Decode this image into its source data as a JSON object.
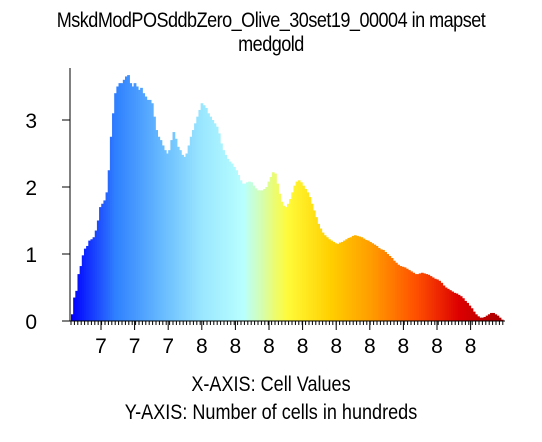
{
  "chart_data": {
    "type": "bar",
    "title": "MskdModPOSddbZero_Olive_30set19_00004 in mapset medgold",
    "xlabel": "X-AXIS: Cell Values",
    "ylabel": "Y-AXIS: Number of cells in hundreds",
    "ylim": [
      0,
      3.8
    ],
    "y_ticks": [
      0,
      1,
      2,
      3
    ],
    "x_tick_labels": [
      "7",
      "7",
      "7",
      "8",
      "8",
      "8",
      "8",
      "8",
      "8",
      "8",
      "8",
      "8"
    ],
    "grid": false,
    "legend": "none",
    "colormap": [
      "#0000ff",
      "#2f7fff",
      "#62b6ff",
      "#9ae6ff",
      "#b8ffff",
      "#fffb3a",
      "#ffd000",
      "#ff9a00",
      "#ff5000",
      "#dd0000",
      "#a80000"
    ],
    "values": [
      0.1,
      0.35,
      0.45,
      0.7,
      0.82,
      0.98,
      1.08,
      1.12,
      1.2,
      1.22,
      1.25,
      1.35,
      1.5,
      1.7,
      1.75,
      1.8,
      1.92,
      2.25,
      2.75,
      3.1,
      3.4,
      3.5,
      3.55,
      3.55,
      3.6,
      3.65,
      3.67,
      3.55,
      3.5,
      3.55,
      3.5,
      3.45,
      3.48,
      3.4,
      3.35,
      3.3,
      3.3,
      3.25,
      3.05,
      2.85,
      2.75,
      2.7,
      2.62,
      2.55,
      2.5,
      2.55,
      2.7,
      2.82,
      2.72,
      2.6,
      2.55,
      2.48,
      2.45,
      2.5,
      2.62,
      2.75,
      2.85,
      2.95,
      3.05,
      3.15,
      3.25,
      3.22,
      3.18,
      3.1,
      3.05,
      3.0,
      2.95,
      2.9,
      2.8,
      2.65,
      2.55,
      2.48,
      2.42,
      2.38,
      2.35,
      2.3,
      2.25,
      2.18,
      2.1,
      2.05,
      2.05,
      2.07,
      2.08,
      2.07,
      2.02,
      1.98,
      1.95,
      1.95,
      1.95,
      1.97,
      2.0,
      2.08,
      2.15,
      2.22,
      2.2,
      2.05,
      1.9,
      1.78,
      1.72,
      1.7,
      1.75,
      1.82,
      1.92,
      2.02,
      2.08,
      2.1,
      2.07,
      2.02,
      1.97,
      1.92,
      1.85,
      1.75,
      1.65,
      1.55,
      1.45,
      1.38,
      1.32,
      1.28,
      1.25,
      1.22,
      1.2,
      1.18,
      1.16,
      1.15,
      1.17,
      1.18,
      1.2,
      1.22,
      1.24,
      1.25,
      1.27,
      1.28,
      1.27,
      1.26,
      1.25,
      1.23,
      1.21,
      1.2,
      1.18,
      1.16,
      1.14,
      1.12,
      1.09,
      1.07,
      1.06,
      1.03,
      1.0,
      0.97,
      0.94,
      0.9,
      0.87,
      0.84,
      0.82,
      0.81,
      0.8,
      0.78,
      0.76,
      0.74,
      0.72,
      0.7,
      0.7,
      0.71,
      0.72,
      0.71,
      0.7,
      0.69,
      0.67,
      0.65,
      0.63,
      0.62,
      0.6,
      0.57,
      0.53,
      0.5,
      0.48,
      0.46,
      0.44,
      0.42,
      0.41,
      0.39,
      0.37,
      0.34,
      0.3,
      0.27,
      0.23,
      0.19,
      0.14,
      0.1,
      0.07,
      0.05,
      0.05,
      0.06,
      0.08,
      0.1,
      0.12,
      0.12,
      0.1,
      0.08,
      0.05,
      0.02
    ]
  }
}
